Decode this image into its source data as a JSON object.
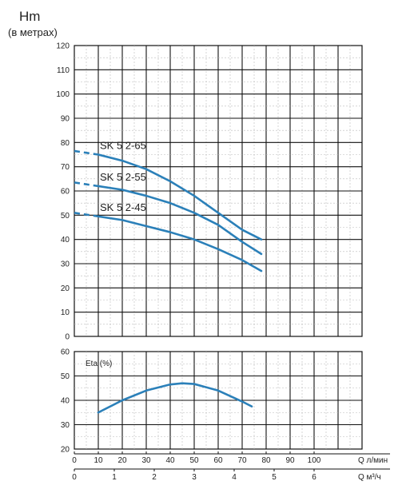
{
  "header": {
    "title": "Hm",
    "subtitle": "(в метрах)"
  },
  "chart_data": [
    {
      "type": "line",
      "ylabel": "Hm (в метрах)",
      "xlabel": "Q л/мин",
      "xlim": [
        0,
        120
      ],
      "ylim": [
        0,
        120
      ],
      "yticks": [
        0,
        10,
        20,
        30,
        40,
        50,
        60,
        70,
        80,
        90,
        100,
        110,
        120
      ],
      "grid": true,
      "series": [
        {
          "name": "SK 5 2-65",
          "color": "#2b80b9",
          "x": [
            10,
            20,
            30,
            40,
            50,
            60,
            70,
            78
          ],
          "y": [
            75,
            72.5,
            69,
            64,
            58,
            51,
            44,
            40
          ],
          "dashed_x": [
            0,
            10
          ],
          "dashed_y": [
            76.5,
            75
          ]
        },
        {
          "name": "SK 5 2-55",
          "color": "#2b80b9",
          "x": [
            10,
            20,
            30,
            40,
            50,
            60,
            70,
            78
          ],
          "y": [
            62,
            60.5,
            58,
            55,
            51,
            46,
            39,
            34
          ],
          "dashed_x": [
            0,
            10
          ],
          "dashed_y": [
            63.5,
            62
          ]
        },
        {
          "name": "SK 5 2-45",
          "color": "#2b80b9",
          "x": [
            10,
            20,
            30,
            40,
            50,
            60,
            70,
            78
          ],
          "y": [
            49.5,
            48,
            45.5,
            43,
            40,
            36,
            31.5,
            27
          ],
          "dashed_x": [
            0,
            10
          ],
          "dashed_y": [
            51,
            49.5
          ]
        }
      ]
    },
    {
      "type": "line",
      "title": "Eta (%)",
      "xlabel": "Q л/мин",
      "xlim": [
        0,
        120
      ],
      "ylim": [
        20,
        60
      ],
      "yticks": [
        20,
        30,
        40,
        50,
        60
      ],
      "grid": true,
      "series": [
        {
          "name": "Eta (%)",
          "color": "#2b80b9",
          "x": [
            10,
            20,
            30,
            40,
            45,
            50,
            60,
            70,
            74
          ],
          "y": [
            35,
            40,
            44,
            46.5,
            47,
            46.7,
            44,
            39.5,
            37.5
          ]
        }
      ]
    }
  ],
  "x_axis_lpm": {
    "unit": "Q л/мин",
    "ticks": [
      0,
      10,
      20,
      30,
      40,
      50,
      60,
      70,
      80,
      90,
      100
    ]
  },
  "x_axis_m3h": {
    "unit": "Q м³/ч",
    "ticks": [
      0,
      1,
      2,
      3,
      4,
      5,
      6
    ]
  }
}
